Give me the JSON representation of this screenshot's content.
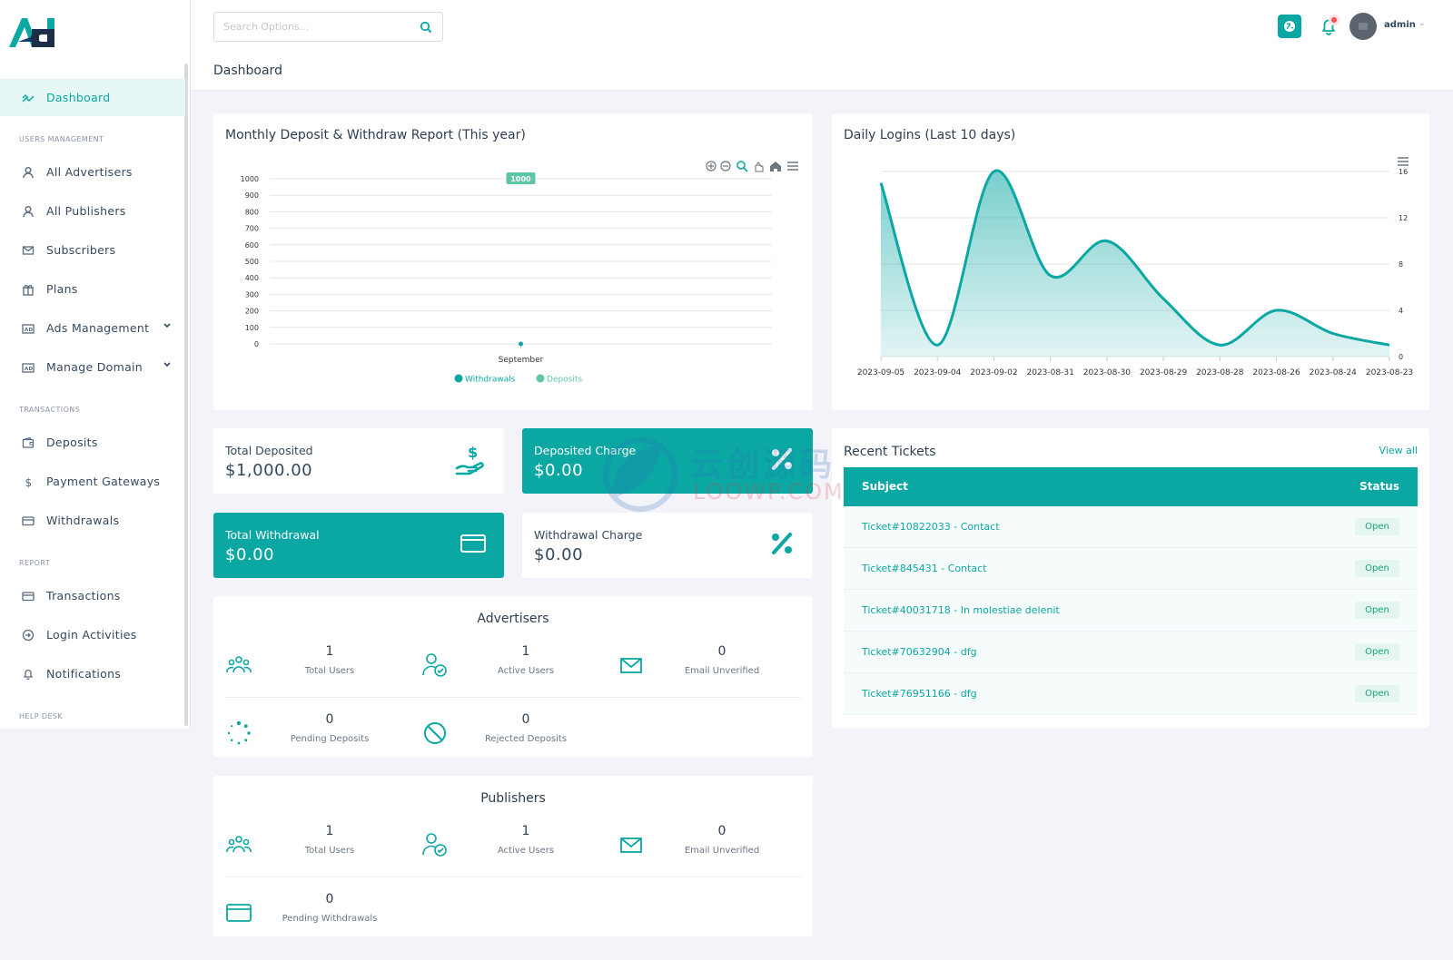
{
  "header": {
    "search_placeholder": "Search Options...",
    "page_title": "Dashboard",
    "user_name": "admin"
  },
  "sidebar": {
    "items": [
      {
        "label": "Dashboard",
        "icon": "chart-line-icon",
        "active": true
      },
      {
        "section": "USERS MANAGEMENT"
      },
      {
        "label": "All Advertisers",
        "icon": "user-icon"
      },
      {
        "label": "All Publishers",
        "icon": "user-icon"
      },
      {
        "label": "Subscribers",
        "icon": "envelope-icon"
      },
      {
        "label": "Plans",
        "icon": "gift-icon"
      },
      {
        "label": "Ads Management",
        "icon": "ad-icon",
        "has_children": true
      },
      {
        "label": "Manage Domain",
        "icon": "ad-icon",
        "has_children": true
      },
      {
        "section": "TRANSACTIONS"
      },
      {
        "label": "Deposits",
        "icon": "wallet-icon"
      },
      {
        "label": "Payment Gateways",
        "icon": "dollar-icon"
      },
      {
        "label": "Withdrawals",
        "icon": "card-icon"
      },
      {
        "section": "REPORT"
      },
      {
        "label": "Transactions",
        "icon": "card-icon"
      },
      {
        "label": "Login Activities",
        "icon": "sign-in-icon"
      },
      {
        "label": "Notifications",
        "icon": "bell-icon"
      },
      {
        "section": "HELP DESK"
      }
    ]
  },
  "monthly_report": {
    "title": "Monthly Deposit & Withdraw Report (This year)"
  },
  "daily_logins": {
    "title": "Daily Logins (Last 10 days)"
  },
  "chart_data": [
    {
      "type": "line",
      "title": "Monthly Deposit & Withdraw Report (This year)",
      "categories": [
        "September"
      ],
      "series": [
        {
          "name": "Withdrawals",
          "values": [
            0
          ],
          "color": "#0ba7a3"
        },
        {
          "name": "Deposits",
          "values": [
            1000
          ],
          "color": "#5cc6a6"
        }
      ],
      "data_labels": [
        "1000"
      ],
      "ylim": [
        0,
        1000
      ],
      "yticks": [
        0,
        100,
        200,
        300,
        400,
        500,
        600,
        700,
        800,
        900,
        1000
      ],
      "legend": "bottom",
      "grid": true,
      "toolbar": [
        "zoom-in-icon",
        "zoom-out-icon",
        "magnify-icon",
        "pan-icon",
        "home-icon",
        "menu-icon"
      ]
    },
    {
      "type": "area",
      "title": "Daily Logins (Last 10 days)",
      "x": [
        "2023-09-05",
        "2023-09-04",
        "2023-09-02",
        "2023-08-31",
        "2023-08-30",
        "2023-08-29",
        "2023-08-28",
        "2023-08-26",
        "2023-08-24",
        "2023-08-23"
      ],
      "series": [
        {
          "values": [
            15,
            1,
            16,
            7,
            10,
            5,
            1,
            4,
            2,
            1
          ],
          "color": "#0ba7a3"
        }
      ],
      "ylim": [
        0,
        16
      ],
      "yticks": [
        0,
        4,
        8,
        12,
        16
      ],
      "yaxis_side": "right",
      "grid": true
    }
  ],
  "stats": {
    "total_deposited": {
      "label": "Total Deposited",
      "value": "$1,000.00"
    },
    "deposited_charge": {
      "label": "Deposited Charge",
      "value": "$0.00"
    },
    "total_withdrawal": {
      "label": "Total Withdrawal",
      "value": "$0.00"
    },
    "withdrawal_charge": {
      "label": "Withdrawal Charge",
      "value": "$0.00"
    }
  },
  "advertisers": {
    "title": "Advertisers",
    "total_users": {
      "value": "1",
      "label": "Total Users"
    },
    "active_users": {
      "value": "1",
      "label": "Active Users"
    },
    "email_unverified": {
      "value": "0",
      "label": "Email Unverified"
    },
    "pending_deposits": {
      "value": "0",
      "label": "Pending Deposits"
    },
    "rejected_deposits": {
      "value": "0",
      "label": "Rejected Deposits"
    }
  },
  "publishers": {
    "title": "Publishers",
    "total_users": {
      "value": "1",
      "label": "Total Users"
    },
    "active_users": {
      "value": "1",
      "label": "Active Users"
    },
    "email_unverified": {
      "value": "0",
      "label": "Email Unverified"
    },
    "pending_withdrawals": {
      "value": "0",
      "label": "Pending Withdrawals"
    }
  },
  "tickets": {
    "title": "Recent Tickets",
    "view_all": "View all",
    "col_subject": "Subject",
    "col_status": "Status",
    "rows": [
      {
        "subject": "Ticket#10822033 - Contact",
        "status": "Open"
      },
      {
        "subject": "Ticket#845431 - Contact",
        "status": "Open"
      },
      {
        "subject": "Ticket#40031718 - In molestiae delenit",
        "status": "Open"
      },
      {
        "subject": "Ticket#70632904 - dfg",
        "status": "Open"
      },
      {
        "subject": "Ticket#76951166 - dfg",
        "status": "Open"
      }
    ]
  },
  "watermark": {
    "text": "云创源码",
    "sub": "LOOWP.COM"
  },
  "colors": {
    "accent": "#0ba7a3",
    "success": "#17a673",
    "danger": "#ef4d56"
  }
}
